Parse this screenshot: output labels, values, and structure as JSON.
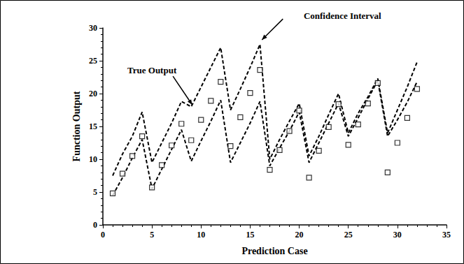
{
  "chart_data": {
    "type": "scatter",
    "x_label": "Prediction Case",
    "y_label": "Function Output",
    "x": [
      1,
      2,
      3,
      4,
      5,
      6,
      7,
      8,
      9,
      10,
      11,
      12,
      13,
      14,
      15,
      16,
      17,
      18,
      19,
      20,
      21,
      22,
      23,
      24,
      25,
      26,
      27,
      28,
      29,
      30,
      31,
      32
    ],
    "series": [
      {
        "name": "True Output",
        "type": "scatter",
        "marker": "square",
        "color": "#000000",
        "values": [
          4.8,
          7.8,
          10.5,
          13.5,
          5.7,
          9.1,
          12.1,
          15.4,
          12.9,
          16.0,
          18.9,
          21.8,
          12.0,
          16.4,
          20.1,
          23.6,
          8.4,
          11.4,
          14.3,
          17.4,
          7.2,
          11.3,
          14.9,
          18.4,
          12.2,
          15.3,
          18.5,
          21.6,
          8.0,
          12.5,
          16.3,
          20.7
        ]
      },
      {
        "name": "Confidence Interval",
        "type": "line",
        "line_style": "dashed",
        "color": "#000000",
        "upper": [
          7.5,
          10.8,
          13.5,
          17.2,
          9.5,
          12.5,
          15.5,
          18.8,
          18.0,
          21.0,
          24.0,
          27.0,
          17.5,
          20.7,
          24.0,
          27.5,
          10.0,
          13.0,
          15.8,
          18.5,
          10.5,
          13.5,
          16.8,
          20.0,
          14.0,
          17.0,
          19.5,
          22.3,
          14.0,
          17.5,
          21.0,
          24.8
        ],
        "lower": [
          4.5,
          7.2,
          10.2,
          13.0,
          5.5,
          8.5,
          11.5,
          14.5,
          9.7,
          12.8,
          15.8,
          19.0,
          9.5,
          12.5,
          15.5,
          18.8,
          9.0,
          11.7,
          14.3,
          17.2,
          9.5,
          12.5,
          15.5,
          18.5,
          13.5,
          16.3,
          19.2,
          22.0,
          13.5,
          16.0,
          18.7,
          21.8
        ]
      }
    ],
    "xlim": [
      0,
      35
    ],
    "xticks": [
      0,
      5,
      10,
      15,
      20,
      25,
      30,
      35
    ],
    "ylim": [
      0,
      30
    ],
    "yticks": [
      0,
      5,
      10,
      15,
      20,
      25,
      30
    ],
    "grid": false
  }
}
